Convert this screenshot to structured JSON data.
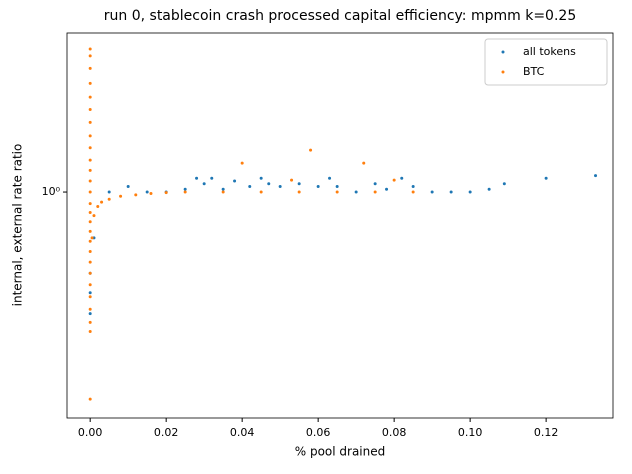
{
  "chart_data": {
    "type": "scatter",
    "title": "run 0, stablecoin crash processed capital efficiency: mpmm k=0.25",
    "x_label": "% pool drained",
    "y_label": "internal, external rate ratio",
    "y_scale": "log",
    "legend": "upper right",
    "xlim": [
      -0.0061,
      0.1376
    ],
    "ylim": [
      0.449,
      1.757
    ],
    "xticks": [
      {
        "value": 0,
        "label": "0.00"
      },
      {
        "value": 0.02,
        "label": "0.02"
      },
      {
        "value": 0.04,
        "label": "0.04"
      },
      {
        "value": 0.06,
        "label": "0.06"
      },
      {
        "value": 0.08,
        "label": "0.08"
      },
      {
        "value": 0.1,
        "label": "0.10"
      },
      {
        "value": 0.12,
        "label": "0.12"
      }
    ],
    "yticks": [
      {
        "value": 1,
        "label": "10⁰"
      }
    ],
    "series": [
      {
        "name": "all tokens",
        "color": "#1f77b4",
        "x": [
          0.133,
          0.12,
          0.109,
          0.105,
          0.1,
          0.095,
          0.09,
          0.085,
          0.082,
          0.078,
          0.075,
          0.07,
          0.065,
          0.063,
          0.06,
          0.055,
          0.05,
          0.047,
          0.045,
          0.042,
          0.038,
          0.035,
          0.032,
          0.03,
          0.028,
          0.025,
          0.02,
          0.015,
          0.01,
          0.005,
          0,
          0,
          0,
          0.001
        ],
        "values": [
          1.06,
          1.05,
          1.03,
          1.01,
          1.0,
          1.0,
          1.0,
          1.02,
          1.05,
          1.01,
          1.03,
          1.0,
          1.02,
          1.05,
          1.02,
          1.03,
          1.02,
          1.03,
          1.05,
          1.02,
          1.04,
          1.01,
          1.05,
          1.03,
          1.05,
          1.01,
          1.0,
          1.0,
          1.02,
          1.0,
          0.75,
          0.7,
          0.65,
          0.85
        ]
      },
      {
        "name": "BTC",
        "color": "#ff7f0e",
        "x": [
          0,
          0,
          0,
          0,
          0,
          0,
          0,
          0,
          0,
          0,
          0,
          0,
          0,
          0,
          0,
          0,
          0,
          0,
          0,
          0,
          0,
          0,
          0,
          0,
          0,
          0,
          0,
          0.0005,
          0.001,
          0.002,
          0.003,
          0.005,
          0.008,
          0.012,
          0.016,
          0.02,
          0.025,
          0.035,
          0.045,
          0.055,
          0.065,
          0.075,
          0.085,
          0.04,
          0.058,
          0.072,
          0.053,
          0.08
        ],
        "values": [
          0.61,
          0.63,
          0.66,
          0.69,
          0.72,
          0.75,
          0.78,
          0.81,
          0.84,
          0.87,
          0.9,
          0.93,
          0.96,
          1.0,
          1.04,
          1.08,
          1.12,
          1.17,
          1.22,
          1.28,
          1.34,
          1.4,
          1.47,
          1.55,
          1.62,
          1.66,
          0.48,
          0.85,
          0.92,
          0.95,
          0.965,
          0.975,
          0.985,
          0.99,
          0.995,
          0.998,
          1.0,
          1.0,
          1.0,
          1.0,
          1.0,
          1.0,
          1.0,
          1.108,
          1.16,
          1.108,
          1.043,
          1.043
        ]
      }
    ]
  }
}
